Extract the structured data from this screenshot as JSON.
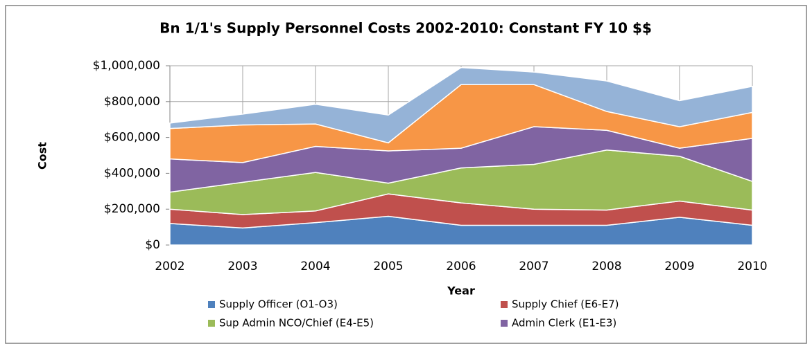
{
  "chart_data": {
    "type": "stacked_area",
    "title": "Bn 1/1's Supply Personnel Costs 2002-2010: Constant FY 10 $$",
    "x_label": "Year",
    "y_label": "Cost",
    "categories": [
      "2002",
      "2003",
      "2004",
      "2005",
      "2006",
      "2007",
      "2008",
      "2009",
      "2010"
    ],
    "series": [
      {
        "name": "Supply Officer (O1-O3)",
        "color": "#4f81bd",
        "values": [
          120000,
          95000,
          125000,
          160000,
          110000,
          110000,
          110000,
          155000,
          110000
        ]
      },
      {
        "name": "Supply Chief (E6-E7)",
        "color": "#c0504d",
        "values": [
          80000,
          75000,
          65000,
          125000,
          125000,
          90000,
          85000,
          90000,
          85000
        ]
      },
      {
        "name": "Sup Admin NCO/Chief (E4-E5)",
        "color": "#9bbb59",
        "values": [
          95000,
          180000,
          215000,
          60000,
          195000,
          250000,
          335000,
          250000,
          160000
        ]
      },
      {
        "name": "Admin Clerk (E1-E3)",
        "color": "#8064a2",
        "values": [
          185000,
          110000,
          145000,
          180000,
          110000,
          210000,
          110000,
          45000,
          240000
        ]
      },
      {
        "color": "#f79646",
        "values": [
          170000,
          210000,
          125000,
          45000,
          355000,
          235000,
          105000,
          120000,
          145000
        ]
      },
      {
        "color": "#95b3d7",
        "values": [
          30000,
          60000,
          110000,
          155000,
          95000,
          70000,
          170000,
          145000,
          145000
        ]
      }
    ],
    "ylim": [
      0,
      1000000
    ],
    "yticks": [
      {
        "value": 0,
        "label": "$0"
      },
      {
        "value": 200000,
        "label": "$200,000"
      },
      {
        "value": 400000,
        "label": "$400,000"
      },
      {
        "value": 600000,
        "label": "$600,000"
      },
      {
        "value": 800000,
        "label": "$800,000"
      },
      {
        "value": 1000000,
        "label": "$1,000,000"
      }
    ],
    "grid": true
  }
}
